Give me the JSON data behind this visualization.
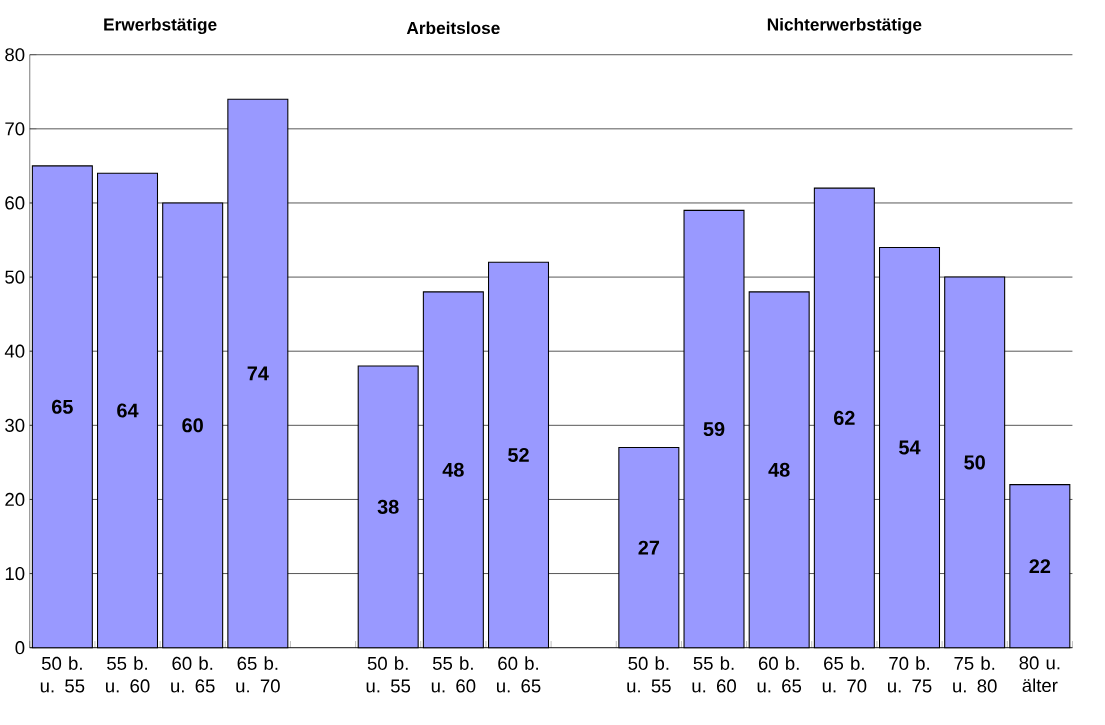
{
  "chart_data": {
    "type": "bar",
    "categories": [
      "50 b. u. 55",
      "55 b. u. 60",
      "60 b. u. 65",
      "65 b. u. 70",
      null,
      "50 b. u. 55",
      "55 b. u. 60",
      "60 b. u. 65",
      null,
      "50 b. u. 55",
      "55 b. u. 60",
      "60 b. u. 65",
      "65 b. u. 70",
      "70 b. u. 75",
      "75 b. u. 80",
      "80 u. älter"
    ],
    "values": [
      65,
      64,
      60,
      74,
      null,
      38,
      48,
      52,
      null,
      27,
      59,
      48,
      62,
      54,
      50,
      22
    ],
    "color": "#9999ff",
    "annotations": [
      "Erwerbstätige",
      "Arbeitslose",
      "Nichterwerbstätige"
    ],
    "ylim": [
      0,
      80
    ],
    "yticks": [
      0,
      10,
      20,
      30,
      40,
      50,
      60,
      70,
      80
    ],
    "grid": "y",
    "data_labels": true
  }
}
